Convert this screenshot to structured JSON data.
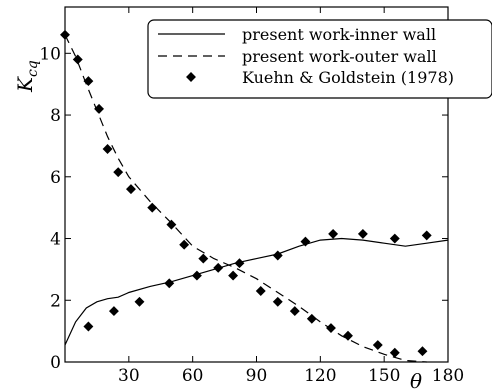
{
  "chart_data": {
    "type": "line",
    "title": "",
    "xlabel": "θ",
    "ylabel": "K",
    "ylabel_subscript": "cq",
    "xlim": [
      0,
      180
    ],
    "ylim": [
      0,
      11.5
    ],
    "xticks": [
      30,
      60,
      90,
      120,
      150,
      180
    ],
    "yticks": [
      0,
      2,
      4,
      6,
      8,
      10
    ],
    "grid": false,
    "legend_position": "top-right",
    "series": [
      {
        "name": "present work-inner wall",
        "style": "solid",
        "x": [
          0,
          5,
          10,
          15,
          20,
          25,
          30,
          40,
          50,
          60,
          70,
          80,
          90,
          100,
          110,
          120,
          130,
          140,
          150,
          160,
          170,
          180
        ],
        "y": [
          0.55,
          1.3,
          1.75,
          1.95,
          2.05,
          2.1,
          2.25,
          2.45,
          2.6,
          2.8,
          3.0,
          3.2,
          3.35,
          3.5,
          3.75,
          3.95,
          4.0,
          3.95,
          3.85,
          3.75,
          3.85,
          3.95
        ]
      },
      {
        "name": "present work-outer wall",
        "style": "dashed",
        "x": [
          0,
          5,
          10,
          15,
          20,
          25,
          30,
          40,
          50,
          60,
          70,
          80,
          90,
          100,
          110,
          120,
          130,
          140,
          150,
          160,
          170
        ],
        "y": [
          10.6,
          9.9,
          9.0,
          8.15,
          7.3,
          6.6,
          6.0,
          5.2,
          4.5,
          3.75,
          3.35,
          3.05,
          2.7,
          2.25,
          1.8,
          1.3,
          0.85,
          0.5,
          0.25,
          0.05,
          0.0
        ]
      },
      {
        "name": "Kuehn & Goldstein (1978)",
        "style": "markers",
        "marker": "diamond",
        "points": [
          [
            0,
            10.6
          ],
          [
            6,
            9.8
          ],
          [
            11,
            9.1
          ],
          [
            16,
            8.2
          ],
          [
            20,
            6.9
          ],
          [
            25,
            6.15
          ],
          [
            31,
            5.6
          ],
          [
            41,
            5.0
          ],
          [
            50,
            4.45
          ],
          [
            56,
            3.8
          ],
          [
            65,
            3.35
          ],
          [
            79,
            2.8
          ],
          [
            92,
            2.3
          ],
          [
            100,
            1.95
          ],
          [
            108,
            1.65
          ],
          [
            116,
            1.4
          ],
          [
            125,
            1.1
          ],
          [
            133,
            0.85
          ],
          [
            147,
            0.55
          ],
          [
            155,
            0.3
          ],
          [
            168,
            0.35
          ],
          [
            11,
            1.15
          ],
          [
            23,
            1.65
          ],
          [
            35,
            1.95
          ],
          [
            49,
            2.55
          ],
          [
            62,
            2.8
          ],
          [
            72,
            3.05
          ],
          [
            82,
            3.2
          ],
          [
            100,
            3.45
          ],
          [
            113,
            3.9
          ],
          [
            126,
            4.15
          ],
          [
            140,
            4.15
          ],
          [
            155,
            4.0
          ],
          [
            170,
            4.1
          ]
        ]
      }
    ]
  }
}
